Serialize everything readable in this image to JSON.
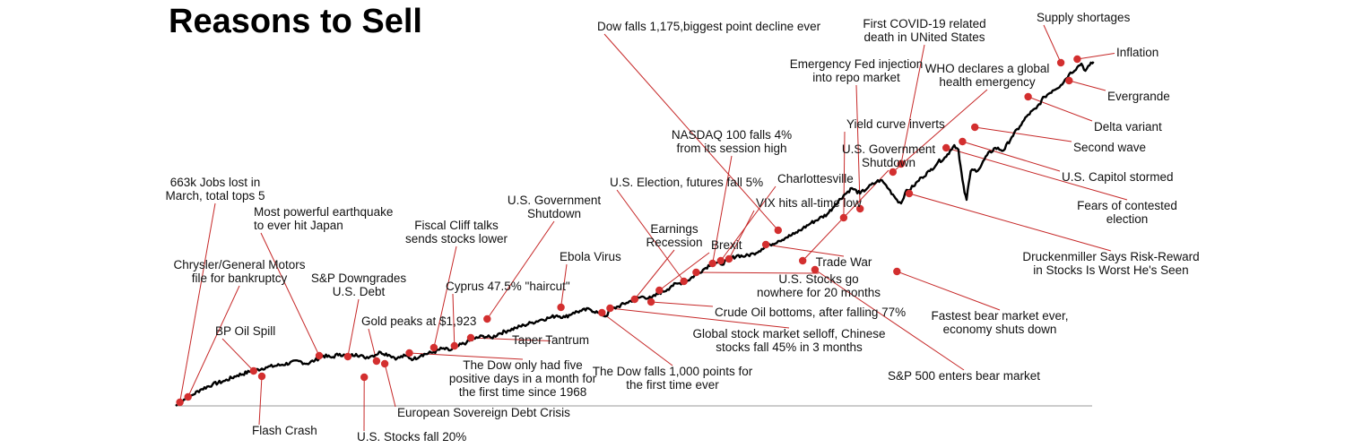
{
  "chart_data": {
    "type": "line",
    "title": "Reasons to Sell",
    "xlabel": "",
    "ylabel": "",
    "grid": false,
    "legend": "none",
    "colors": {
      "line": "#000000",
      "marker": "#d32f2f",
      "leader": "#c62828",
      "baseline": "#9a9a9a"
    },
    "series": [
      {
        "points": [
          [
            0,
            0
          ],
          [
            1,
            4
          ],
          [
            2,
            7
          ],
          [
            4,
            12
          ],
          [
            6,
            18
          ],
          [
            9,
            24
          ],
          [
            12,
            28
          ],
          [
            15,
            34
          ],
          [
            18,
            38
          ],
          [
            22,
            43
          ],
          [
            26,
            46
          ],
          [
            30,
            50
          ],
          [
            32,
            47
          ],
          [
            34,
            51
          ],
          [
            36,
            56
          ],
          [
            38,
            54
          ],
          [
            40,
            58
          ],
          [
            42,
            55
          ],
          [
            44,
            58
          ],
          [
            46,
            54
          ],
          [
            48,
            56
          ],
          [
            50,
            60
          ],
          [
            52,
            57
          ],
          [
            54,
            53
          ],
          [
            56,
            56
          ],
          [
            58,
            52
          ],
          [
            60,
            57
          ],
          [
            63,
            60
          ],
          [
            65,
            64
          ],
          [
            67,
            62
          ],
          [
            69,
            67
          ],
          [
            71,
            71
          ],
          [
            73,
            75
          ],
          [
            75,
            78
          ],
          [
            77,
            76
          ],
          [
            79,
            81
          ],
          [
            81,
            84
          ],
          [
            83,
            87
          ],
          [
            85,
            90
          ],
          [
            87,
            93
          ],
          [
            89,
            96
          ],
          [
            91,
            98
          ],
          [
            93,
            101
          ],
          [
            95,
            99
          ],
          [
            97,
            104
          ],
          [
            99,
            106
          ],
          [
            101,
            108
          ],
          [
            103,
            104
          ],
          [
            105,
            100
          ],
          [
            106,
            107
          ],
          [
            108,
            111
          ],
          [
            110,
            115
          ],
          [
            112,
            119
          ],
          [
            114,
            122
          ],
          [
            116,
            120
          ],
          [
            118,
            126
          ],
          [
            120,
            130
          ],
          [
            121,
            134
          ],
          [
            123,
            137
          ],
          [
            125,
            140
          ],
          [
            127,
            147
          ],
          [
            129,
            153
          ],
          [
            131,
            160
          ],
          [
            133,
            158
          ],
          [
            135,
            163
          ],
          [
            137,
            168
          ],
          [
            139,
            167
          ],
          [
            141,
            170
          ],
          [
            143,
            175
          ],
          [
            145,
            180
          ],
          [
            147,
            184
          ],
          [
            149,
            188
          ],
          [
            151,
            192
          ],
          [
            153,
            198
          ],
          [
            155,
            204
          ],
          [
            157,
            209
          ],
          [
            159,
            214
          ],
          [
            161,
            225
          ],
          [
            163,
            235
          ],
          [
            165,
            243
          ],
          [
            167,
            237
          ],
          [
            169,
            244
          ],
          [
            171,
            250
          ],
          [
            172,
            252
          ],
          [
            173,
            248
          ],
          [
            174,
            242
          ],
          [
            175,
            236
          ],
          [
            176,
            230
          ],
          [
            177,
            226
          ],
          [
            178,
            238
          ],
          [
            180,
            245
          ],
          [
            182,
            255
          ],
          [
            184,
            262
          ],
          [
            186,
            272
          ],
          [
            188,
            278
          ],
          [
            189,
            285
          ],
          [
            190,
            291
          ],
          [
            191,
            286
          ],
          [
            191.5,
            268
          ],
          [
            192,
            252
          ],
          [
            192.5,
            238
          ],
          [
            193,
            230
          ],
          [
            193.5,
            248
          ],
          [
            194,
            262
          ],
          [
            196,
            264
          ],
          [
            198,
            280
          ],
          [
            200,
            288
          ],
          [
            202,
            285
          ],
          [
            204,
            300
          ],
          [
            206,
            312
          ],
          [
            208,
            325
          ],
          [
            210,
            332
          ],
          [
            212,
            345
          ],
          [
            214,
            352
          ],
          [
            216,
            358
          ],
          [
            218,
            370
          ],
          [
            220,
            378
          ],
          [
            221,
            382
          ],
          [
            222,
            374
          ],
          [
            223,
            380
          ],
          [
            224,
            384
          ]
        ]
      }
    ],
    "events": [
      {
        "label": "663k Jobs lost in\nMarch, total tops 5",
        "x": 1,
        "y": 4
      },
      {
        "label": "Chrysler/General Motors\nfile for bankruptcy",
        "x": 3,
        "y": 10
      },
      {
        "label": "BP Oil Spill",
        "x": 19,
        "y": 39
      },
      {
        "label": "Flash Crash",
        "x": 21,
        "y": 33
      },
      {
        "label": "Most powerful earthquake\nto ever hit Japan",
        "x": 35,
        "y": 56
      },
      {
        "label": "S&P Downgrades\nU.S. Debt",
        "x": 42,
        "y": 55
      },
      {
        "label": "U.S. Stocks fall 20%",
        "x": 46,
        "y": 32
      },
      {
        "label": "Gold peaks at $1,923",
        "x": 49,
        "y": 50
      },
      {
        "label": "European Sovereign Debt Crisis",
        "x": 51,
        "y": 47
      },
      {
        "label": "Fiscal Cliff talks\nsends stocks lower",
        "x": 63,
        "y": 65
      },
      {
        "label": "Cyprus 47.5% \"haircut\"",
        "x": 68,
        "y": 67
      },
      {
        "label": "The Dow only had five\npositive days in a month for\nthe first time since 1968",
        "x": 57,
        "y": 59
      },
      {
        "label": "U.S. Government\nShutdown",
        "x": 76,
        "y": 97
      },
      {
        "label": "Taper Tantrum",
        "x": 72,
        "y": 76
      },
      {
        "label": "Ebola Virus",
        "x": 94,
        "y": 110
      },
      {
        "label": "The Dow falls 1,000 points for\nthe first time ever",
        "x": 104,
        "y": 104
      },
      {
        "label": "Earnings\nRecession",
        "x": 112,
        "y": 119
      },
      {
        "label": "Global stock market selloff, Chinese\nstocks fall 45% in 3 months",
        "x": 106,
        "y": 109
      },
      {
        "label": "Crude Oil bottoms, after falling 77%",
        "x": 116,
        "y": 116
      },
      {
        "label": "Brexit",
        "x": 118,
        "y": 129
      },
      {
        "label": "U.S. Election, futures fall 5%",
        "x": 124,
        "y": 139
      },
      {
        "label": "NASDAQ 100 falls 4%\nfrom its  session high",
        "x": 131,
        "y": 159
      },
      {
        "label": "U.S. Stocks go\nnowhere for 20 months",
        "x": 127,
        "y": 149
      },
      {
        "label": "Charlottesville",
        "x": 133,
        "y": 162
      },
      {
        "label": "VIX hits all-time low",
        "x": 135,
        "y": 164
      },
      {
        "label": "Dow falls 1,175,biggest point decline ever",
        "x": 147,
        "y": 196
      },
      {
        "label": "Trade War",
        "x": 144,
        "y": 180
      },
      {
        "label": "U.S. Government\nShutdown",
        "x": 153,
        "y": 162
      },
      {
        "label": "S&P 500 enters bear market",
        "x": 156,
        "y": 152
      },
      {
        "label": "Yield curve inverts",
        "x": 163,
        "y": 210
      },
      {
        "label": "Emergency Fed injection\ninto repo market",
        "x": 167,
        "y": 220
      },
      {
        "label": "First COVID-19 related\ndeath in UNited States",
        "x": 177,
        "y": 270
      },
      {
        "label": "WHO declares a global\nhealth emergency",
        "x": 175,
        "y": 261
      },
      {
        "label": "Fastest bear market ever,\neconomy shuts down",
        "x": 176,
        "y": 150
      },
      {
        "label": "Druckenmiller Says Risk-Reward\nin Stocks Is Worst He's Seen",
        "x": 179,
        "y": 237
      },
      {
        "label": "Fears of contested\nelection",
        "x": 188,
        "y": 288
      },
      {
        "label": "U.S. Capitol stormed",
        "x": 192,
        "y": 295
      },
      {
        "label": "Second wave",
        "x": 195,
        "y": 311
      },
      {
        "label": "Delta variant",
        "x": 208,
        "y": 345
      },
      {
        "label": "Supply shortages",
        "x": 216,
        "y": 383
      },
      {
        "label": "Inflation",
        "x": 220,
        "y": 387
      },
      {
        "label": "Evergrande",
        "x": 218,
        "y": 363
      }
    ]
  }
}
